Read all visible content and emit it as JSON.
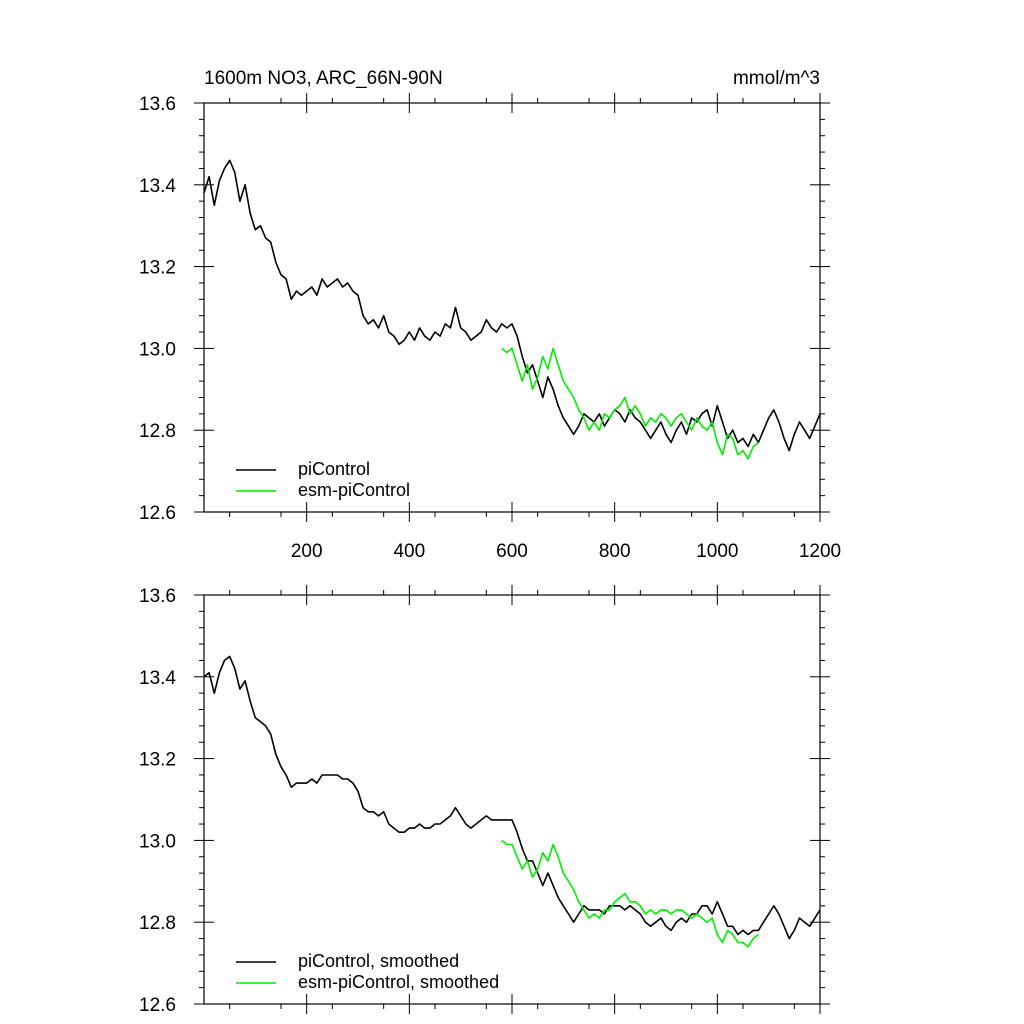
{
  "header": {
    "title": "1600m NO3, ARC_66N-90N",
    "units": "mmol/m^3"
  },
  "chart_data": [
    {
      "type": "line",
      "xlim": [
        0,
        1200
      ],
      "ylim": [
        12.6,
        13.6
      ],
      "xticks": [
        200,
        400,
        600,
        800,
        1000,
        1200
      ],
      "yticks": [
        12.6,
        12.8,
        13.0,
        13.2,
        13.4,
        13.6
      ],
      "ytick_labels": [
        "12.6",
        "12.8",
        "13.0",
        "13.2",
        "13.4",
        "13.6"
      ],
      "xtick_labels": [
        "200",
        "400",
        "600",
        "800",
        "1000",
        "1200"
      ],
      "show_xtick_labels": true,
      "legend_position": "bottom-left",
      "series": [
        {
          "name": "piControl",
          "color": "#000000",
          "x": [
            0,
            10,
            20,
            30,
            40,
            50,
            60,
            70,
            80,
            90,
            100,
            110,
            120,
            130,
            140,
            150,
            160,
            170,
            180,
            190,
            200,
            210,
            220,
            230,
            240,
            250,
            260,
            270,
            280,
            290,
            300,
            310,
            320,
            330,
            340,
            350,
            360,
            370,
            380,
            390,
            400,
            410,
            420,
            430,
            440,
            450,
            460,
            470,
            480,
            490,
            500,
            510,
            520,
            530,
            540,
            550,
            560,
            570,
            580,
            590,
            600,
            610,
            620,
            630,
            640,
            650,
            660,
            670,
            680,
            690,
            700,
            710,
            720,
            730,
            740,
            750,
            760,
            770,
            780,
            790,
            800,
            810,
            820,
            830,
            840,
            850,
            860,
            870,
            880,
            890,
            900,
            910,
            920,
            930,
            940,
            950,
            960,
            970,
            980,
            990,
            1000,
            1010,
            1020,
            1030,
            1040,
            1050,
            1060,
            1070,
            1080,
            1090,
            1100,
            1110,
            1120,
            1130,
            1140,
            1150,
            1160,
            1170,
            1180,
            1190,
            1200
          ],
          "y": [
            13.38,
            13.42,
            13.35,
            13.41,
            13.44,
            13.46,
            13.43,
            13.36,
            13.4,
            13.33,
            13.29,
            13.3,
            13.27,
            13.26,
            13.21,
            13.18,
            13.17,
            13.12,
            13.14,
            13.13,
            13.14,
            13.15,
            13.13,
            13.17,
            13.15,
            13.16,
            13.17,
            13.15,
            13.16,
            13.14,
            13.13,
            13.08,
            13.06,
            13.07,
            13.05,
            13.08,
            13.04,
            13.03,
            13.01,
            13.02,
            13.04,
            13.02,
            13.05,
            13.03,
            13.02,
            13.04,
            13.03,
            13.06,
            13.05,
            13.1,
            13.05,
            13.04,
            13.02,
            13.03,
            13.04,
            13.07,
            13.05,
            13.04,
            13.06,
            13.05,
            13.06,
            13.03,
            12.98,
            12.94,
            12.96,
            12.92,
            12.88,
            12.93,
            12.9,
            12.86,
            12.83,
            12.81,
            12.79,
            12.81,
            12.84,
            12.83,
            12.82,
            12.84,
            12.81,
            12.83,
            12.85,
            12.84,
            12.82,
            12.85,
            12.83,
            12.82,
            12.8,
            12.78,
            12.8,
            12.82,
            12.79,
            12.77,
            12.8,
            12.82,
            12.79,
            12.83,
            12.82,
            12.84,
            12.85,
            12.81,
            12.86,
            12.82,
            12.78,
            12.8,
            12.77,
            12.78,
            12.76,
            12.79,
            12.77,
            12.8,
            12.83,
            12.85,
            12.82,
            12.78,
            12.75,
            12.79,
            12.82,
            12.8,
            12.78,
            12.81,
            12.84
          ]
        },
        {
          "name": "esm-piControl",
          "color": "#00ee00",
          "x": [
            580,
            590,
            600,
            610,
            620,
            630,
            640,
            650,
            660,
            670,
            680,
            690,
            700,
            710,
            720,
            730,
            740,
            750,
            760,
            770,
            780,
            790,
            800,
            810,
            820,
            830,
            840,
            850,
            860,
            870,
            880,
            890,
            900,
            910,
            920,
            930,
            940,
            950,
            960,
            970,
            980,
            990,
            1000,
            1010,
            1020,
            1030,
            1040,
            1050,
            1060,
            1070,
            1080
          ],
          "y": [
            13.0,
            12.99,
            13.0,
            12.96,
            12.92,
            12.96,
            12.9,
            12.93,
            12.98,
            12.95,
            13.0,
            12.96,
            12.92,
            12.9,
            12.88,
            12.85,
            12.83,
            12.8,
            12.82,
            12.8,
            12.84,
            12.83,
            12.85,
            12.86,
            12.88,
            12.84,
            12.86,
            12.84,
            12.81,
            12.83,
            12.82,
            12.84,
            12.83,
            12.81,
            12.83,
            12.84,
            12.82,
            12.8,
            12.83,
            12.81,
            12.8,
            12.82,
            12.77,
            12.74,
            12.79,
            12.78,
            12.74,
            12.75,
            12.73,
            12.76,
            12.77
          ]
        }
      ]
    },
    {
      "type": "line",
      "xlim": [
        0,
        1200
      ],
      "ylim": [
        12.6,
        13.6
      ],
      "xticks": [
        200,
        400,
        600,
        800,
        1000,
        1200
      ],
      "yticks": [
        12.6,
        12.8,
        13.0,
        13.2,
        13.4,
        13.6
      ],
      "ytick_labels": [
        "12.6",
        "12.8",
        "13.0",
        "13.2",
        "13.4",
        "13.6"
      ],
      "show_xtick_labels": false,
      "legend_position": "bottom-left",
      "series": [
        {
          "name": "piControl, smoothed",
          "color": "#000000",
          "x": [
            0,
            10,
            20,
            30,
            40,
            50,
            60,
            70,
            80,
            90,
            100,
            110,
            120,
            130,
            140,
            150,
            160,
            170,
            180,
            190,
            200,
            210,
            220,
            230,
            240,
            250,
            260,
            270,
            280,
            290,
            300,
            310,
            320,
            330,
            340,
            350,
            360,
            370,
            380,
            390,
            400,
            410,
            420,
            430,
            440,
            450,
            460,
            470,
            480,
            490,
            500,
            510,
            520,
            530,
            540,
            550,
            560,
            570,
            580,
            590,
            600,
            610,
            620,
            630,
            640,
            650,
            660,
            670,
            680,
            690,
            700,
            710,
            720,
            730,
            740,
            750,
            760,
            770,
            780,
            790,
            800,
            810,
            820,
            830,
            840,
            850,
            860,
            870,
            880,
            890,
            900,
            910,
            920,
            930,
            940,
            950,
            960,
            970,
            980,
            990,
            1000,
            1010,
            1020,
            1030,
            1040,
            1050,
            1060,
            1070,
            1080,
            1090,
            1100,
            1110,
            1120,
            1130,
            1140,
            1150,
            1160,
            1170,
            1180,
            1190,
            1200
          ],
          "y": [
            13.4,
            13.41,
            13.36,
            13.41,
            13.44,
            13.45,
            13.42,
            13.37,
            13.39,
            13.34,
            13.3,
            13.29,
            13.28,
            13.26,
            13.21,
            13.18,
            13.16,
            13.13,
            13.14,
            13.14,
            13.14,
            13.15,
            13.14,
            13.16,
            13.16,
            13.16,
            13.16,
            13.15,
            13.15,
            13.14,
            13.12,
            13.08,
            13.07,
            13.07,
            13.06,
            13.07,
            13.04,
            13.03,
            13.02,
            13.02,
            13.03,
            13.03,
            13.04,
            13.03,
            13.03,
            13.04,
            13.04,
            13.05,
            13.06,
            13.08,
            13.06,
            13.04,
            13.03,
            13.04,
            13.05,
            13.06,
            13.05,
            13.05,
            13.05,
            13.05,
            13.05,
            13.02,
            12.98,
            12.95,
            12.95,
            12.92,
            12.89,
            12.92,
            12.89,
            12.86,
            12.84,
            12.82,
            12.8,
            12.82,
            12.84,
            12.83,
            12.83,
            12.83,
            12.82,
            12.84,
            12.84,
            12.84,
            12.83,
            12.84,
            12.83,
            12.82,
            12.8,
            12.79,
            12.8,
            12.81,
            12.79,
            12.78,
            12.8,
            12.81,
            12.8,
            12.82,
            12.82,
            12.84,
            12.84,
            12.82,
            12.85,
            12.82,
            12.79,
            12.79,
            12.77,
            12.78,
            12.77,
            12.78,
            12.78,
            12.8,
            12.82,
            12.84,
            12.82,
            12.79,
            12.76,
            12.78,
            12.81,
            12.8,
            12.79,
            12.81,
            12.83
          ]
        },
        {
          "name": "esm-piControl, smoothed",
          "color": "#00ee00",
          "x": [
            580,
            590,
            600,
            610,
            620,
            630,
            640,
            650,
            660,
            670,
            680,
            690,
            700,
            710,
            720,
            730,
            740,
            750,
            760,
            770,
            780,
            790,
            800,
            810,
            820,
            830,
            840,
            850,
            860,
            870,
            880,
            890,
            900,
            910,
            920,
            930,
            940,
            950,
            960,
            970,
            980,
            990,
            1000,
            1010,
            1020,
            1030,
            1040,
            1050,
            1060,
            1070,
            1080
          ],
          "y": [
            13.0,
            12.99,
            12.99,
            12.96,
            12.93,
            12.95,
            12.91,
            12.93,
            12.97,
            12.95,
            12.99,
            12.96,
            12.92,
            12.9,
            12.88,
            12.85,
            12.83,
            12.81,
            12.82,
            12.81,
            12.83,
            12.83,
            12.85,
            12.86,
            12.87,
            12.85,
            12.85,
            12.84,
            12.82,
            12.83,
            12.82,
            12.83,
            12.83,
            12.82,
            12.83,
            12.83,
            12.82,
            12.81,
            12.82,
            12.81,
            12.8,
            12.81,
            12.77,
            12.75,
            12.78,
            12.77,
            12.75,
            12.75,
            12.74,
            12.76,
            12.77
          ]
        }
      ]
    }
  ]
}
